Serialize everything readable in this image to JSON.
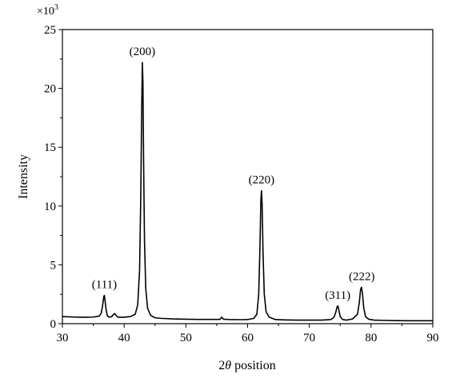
{
  "chart_data": {
    "type": "line",
    "title": "",
    "xlabel_prefix": "2",
    "xlabel_symbol": "θ",
    "xlabel_suffix": " position",
    "ylabel": "Intensity",
    "y_multiplier_base": "×10",
    "y_multiplier_exp": "3",
    "xlim": [
      30,
      90
    ],
    "ylim": [
      0,
      25
    ],
    "xticks": [
      30,
      40,
      50,
      60,
      70,
      80,
      90
    ],
    "yticks": [
      0,
      5,
      10,
      15,
      20,
      25
    ],
    "grid": false,
    "series": [
      {
        "color": "#000000",
        "x": [
          30,
          31,
          32,
          33,
          34,
          35,
          36,
          36.3,
          36.5,
          36.7,
          36.8,
          36.9,
          37.1,
          37.3,
          37.6,
          38.0,
          38.3,
          38.5,
          38.7,
          39.0,
          40.0,
          41.0,
          41.8,
          42.2,
          42.5,
          42.7,
          42.85,
          42.95,
          43.05,
          43.15,
          43.3,
          43.5,
          43.8,
          44.3,
          45.0,
          46.0,
          48.0,
          50.0,
          52.0,
          54.0,
          55.5,
          55.8,
          56.1,
          57.0,
          59.0,
          60.0,
          61.0,
          61.5,
          61.8,
          62.0,
          62.15,
          62.25,
          62.35,
          62.5,
          62.7,
          63.0,
          63.5,
          64.5,
          66.0,
          68.0,
          70.0,
          72.0,
          73.5,
          74.0,
          74.3,
          74.5,
          74.65,
          74.8,
          75.0,
          75.4,
          76.0,
          77.0,
          77.8,
          78.1,
          78.3,
          78.45,
          78.6,
          78.8,
          79.1,
          79.6,
          80.5,
          82.0,
          84.0,
          86.0,
          88.0,
          90.0
        ],
        "y": [
          0.6,
          0.58,
          0.56,
          0.55,
          0.55,
          0.56,
          0.65,
          0.9,
          1.5,
          2.3,
          2.4,
          2.0,
          1.1,
          0.65,
          0.55,
          0.6,
          0.8,
          0.85,
          0.7,
          0.55,
          0.55,
          0.6,
          0.8,
          1.6,
          4.5,
          11.0,
          18.5,
          22.2,
          20.5,
          14.0,
          7.0,
          3.0,
          1.3,
          0.7,
          0.5,
          0.45,
          0.4,
          0.38,
          0.36,
          0.36,
          0.36,
          0.55,
          0.38,
          0.35,
          0.34,
          0.35,
          0.45,
          0.8,
          2.5,
          6.5,
          10.5,
          11.3,
          10.2,
          6.0,
          2.5,
          1.0,
          0.55,
          0.35,
          0.32,
          0.3,
          0.3,
          0.3,
          0.35,
          0.55,
          1.0,
          1.45,
          1.5,
          1.1,
          0.6,
          0.35,
          0.3,
          0.4,
          0.8,
          1.8,
          2.9,
          3.1,
          2.6,
          1.4,
          0.6,
          0.38,
          0.3,
          0.28,
          0.26,
          0.25,
          0.25,
          0.25
        ]
      }
    ],
    "annotations": [
      {
        "label": "(111)",
        "x": 36.8,
        "y": 2.4
      },
      {
        "label": "(200)",
        "x": 42.95,
        "y": 22.2
      },
      {
        "label": "(220)",
        "x": 62.25,
        "y": 11.3
      },
      {
        "label": "(311)",
        "x": 74.6,
        "y": 1.5
      },
      {
        "label": "(222)",
        "x": 78.5,
        "y": 3.1
      }
    ]
  }
}
